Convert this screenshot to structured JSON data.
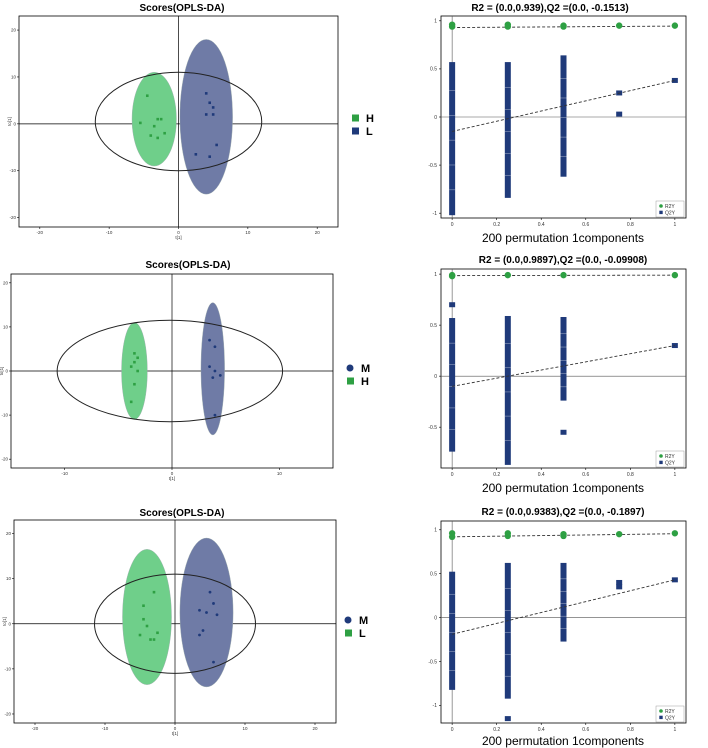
{
  "chart_data": [
    {
      "type": "scatter",
      "title": "Scores(OPLS-DA)",
      "xlabel": "t[1]",
      "ylabel": "to[1]",
      "xlim": [
        -23,
        23
      ],
      "ylim": [
        -22,
        23
      ],
      "xticks": [
        -20,
        -10,
        0,
        10,
        20
      ],
      "yticks": [
        -20,
        -10,
        0,
        10,
        20
      ],
      "ellipse": {
        "cx": 0,
        "cy": 0.5,
        "rx": 12,
        "ry": 10.5
      },
      "groups": [
        {
          "name": "H",
          "color": "#2ea043",
          "fill": "#6fcf8a",
          "marker": "square",
          "region": {
            "cx": -3.5,
            "cy": 1,
            "rx": 3.2,
            "ry": 10
          },
          "points": [
            [
              -4.5,
              6
            ],
            [
              -3,
              1
            ],
            [
              -2.5,
              1
            ],
            [
              -3.5,
              -0.5
            ],
            [
              -5.5,
              0.2
            ],
            [
              -2,
              -2
            ],
            [
              -3,
              -3
            ],
            [
              -4,
              -2.5
            ]
          ]
        },
        {
          "name": "L",
          "color": "#1f3a7a",
          "fill": "#6f7ba6",
          "marker": "square",
          "region": {
            "cx": 4,
            "cy": 1.5,
            "rx": 3.8,
            "ry": 16.5
          },
          "points": [
            [
              4,
              6.5
            ],
            [
              4.5,
              4.5
            ],
            [
              5,
              3.5
            ],
            [
              4,
              2
            ],
            [
              5,
              2
            ],
            [
              5.5,
              -4.5
            ],
            [
              2.5,
              -6.5
            ],
            [
              4.5,
              -7
            ]
          ]
        }
      ]
    },
    {
      "type": "scatter",
      "title": "R2 = (0.0,0.939),Q2 =(0.0, -0.1513)",
      "xlabel": "200 permutation 1components",
      "xlim": [
        -0.05,
        1.05
      ],
      "ylim": [
        -1.05,
        1.05
      ],
      "xticks": [
        0,
        0.2,
        0.4,
        0.6,
        0.8,
        1
      ],
      "yticks": [
        -1,
        -0.5,
        0,
        0.5,
        1
      ],
      "legend": [
        "R2Y",
        "Q2Y"
      ],
      "r2_points": [
        [
          0,
          0.94
        ],
        [
          0,
          0.96
        ],
        [
          0.25,
          0.94
        ],
        [
          0.25,
          0.96
        ],
        [
          0.5,
          0.94
        ],
        [
          0.5,
          0.95
        ],
        [
          0.75,
          0.95
        ],
        [
          1,
          0.95
        ]
      ],
      "q2_stacks": [
        [
          0,
          -1,
          0.55
        ],
        [
          0.25,
          -0.82,
          0.55
        ],
        [
          0.5,
          -0.6,
          0.62
        ]
      ],
      "q2_points": [
        [
          0.75,
          0.25
        ],
        [
          0.75,
          0.03
        ],
        [
          1,
          0.38
        ]
      ],
      "r2_line": [
        [
          0,
          0.93
        ],
        [
          1,
          0.945
        ]
      ],
      "q2_line": [
        [
          0,
          -0.15
        ],
        [
          1,
          0.38
        ]
      ]
    },
    {
      "type": "scatter",
      "title": "Scores(OPLS-DA)",
      "xlabel": "t[1]",
      "ylabel": "to[1]",
      "xlim": [
        -15,
        15
      ],
      "ylim": [
        -22,
        22
      ],
      "xticks": [
        -10,
        0,
        10
      ],
      "yticks": [
        -20,
        -10,
        0,
        10,
        20
      ],
      "ellipse": {
        "cx": -0.2,
        "cy": 0,
        "rx": 10.5,
        "ry": 11.5
      },
      "groups": [
        {
          "name": "M",
          "color": "#1f3a7a",
          "fill": "#6f7ba6",
          "marker": "circle",
          "region": {
            "cx": 3.8,
            "cy": 0.5,
            "rx": 1.1,
            "ry": 15
          },
          "points": [
            [
              3.5,
              7
            ],
            [
              4,
              5.5
            ],
            [
              3.5,
              1
            ],
            [
              4,
              0
            ],
            [
              4.5,
              -1
            ],
            [
              3.8,
              -1.5
            ],
            [
              4,
              -10
            ]
          ]
        },
        {
          "name": "H",
          "color": "#2ea043",
          "fill": "#6fcf8a",
          "marker": "square",
          "region": {
            "cx": -3.5,
            "cy": 0,
            "rx": 1.2,
            "ry": 11
          },
          "points": [
            [
              -3.5,
              4
            ],
            [
              -3.2,
              3
            ],
            [
              -3.5,
              2
            ],
            [
              -3.8,
              1
            ],
            [
              -3.2,
              0
            ],
            [
              -3.5,
              -3
            ],
            [
              -3.8,
              -7
            ]
          ]
        }
      ]
    },
    {
      "type": "scatter",
      "title": "R2 = (0.0,0.9897),Q2 =(0.0, -0.09908)",
      "xlabel": "200 permutation 1components",
      "xlim": [
        -0.05,
        1.05
      ],
      "ylim": [
        -0.9,
        1.05
      ],
      "xticks": [
        0,
        0.2,
        0.4,
        0.6,
        0.8,
        1
      ],
      "yticks": [
        -0.5,
        0,
        0.5,
        1
      ],
      "legend": [
        "R2Y",
        "Q2Y"
      ],
      "r2_points": [
        [
          0,
          0.99
        ],
        [
          0,
          0.98
        ],
        [
          0.25,
          0.99
        ],
        [
          0.5,
          0.99
        ],
        [
          1,
          0.99
        ]
      ],
      "q2_stacks": [
        [
          0,
          -0.72,
          0.55
        ],
        [
          0.25,
          -0.85,
          0.57
        ],
        [
          0.5,
          -0.22,
          0.56
        ]
      ],
      "q2_points": [
        [
          0,
          0.7
        ],
        [
          0.5,
          -0.55
        ],
        [
          1,
          0.3
        ]
      ],
      "r2_line": [
        [
          0,
          0.985
        ],
        [
          1,
          0.99
        ]
      ],
      "q2_line": [
        [
          0,
          -0.1
        ],
        [
          1,
          0.3
        ]
      ]
    },
    {
      "type": "scatter",
      "title": "Scores(OPLS-DA)",
      "xlabel": "t[1]",
      "ylabel": "to[1]",
      "xlim": [
        -23,
        23
      ],
      "ylim": [
        -22,
        23
      ],
      "xticks": [
        -20,
        -10,
        0,
        10,
        20
      ],
      "yticks": [
        -20,
        -10,
        0,
        10,
        20
      ],
      "ellipse": {
        "cx": 0,
        "cy": 0,
        "rx": 11.5,
        "ry": 11
      },
      "groups": [
        {
          "name": "M",
          "color": "#1f3a7a",
          "fill": "#6f7ba6",
          "marker": "circle",
          "region": {
            "cx": 4.5,
            "cy": 2.5,
            "rx": 3.8,
            "ry": 16.5
          },
          "points": [
            [
              5,
              7
            ],
            [
              5.5,
              4.5
            ],
            [
              3.5,
              3
            ],
            [
              4.5,
              2.5
            ],
            [
              6,
              2
            ],
            [
              4,
              -1.5
            ],
            [
              3.5,
              -2.5
            ],
            [
              5.5,
              -8.5
            ]
          ]
        },
        {
          "name": "L",
          "color": "#2ea043",
          "fill": "#6fcf8a",
          "marker": "square",
          "region": {
            "cx": -4,
            "cy": 1.5,
            "rx": 3.5,
            "ry": 15
          },
          "points": [
            [
              -3,
              7
            ],
            [
              -4.5,
              4
            ],
            [
              -4.5,
              1
            ],
            [
              -4,
              -0.5
            ],
            [
              -2.5,
              -2
            ],
            [
              -5,
              -2.5
            ],
            [
              -3.5,
              -3.5
            ],
            [
              -3,
              -3.5
            ]
          ]
        }
      ]
    },
    {
      "type": "scatter",
      "title": "R2 = (0.0,0.9383),Q2 =(0.0, -0.1897)",
      "xlabel": "200 permutation 1components",
      "xlim": [
        -0.05,
        1.05
      ],
      "ylim": [
        -1.2,
        1.1
      ],
      "xticks": [
        0,
        0.2,
        0.4,
        0.6,
        0.8,
        1
      ],
      "yticks": [
        -1,
        -0.5,
        0,
        0.5,
        1
      ],
      "legend": [
        "R2Y",
        "Q2Y"
      ],
      "r2_points": [
        [
          0,
          0.92
        ],
        [
          0,
          0.96
        ],
        [
          0.25,
          0.93
        ],
        [
          0.25,
          0.96
        ],
        [
          0.5,
          0.93
        ],
        [
          0.5,
          0.95
        ],
        [
          0.75,
          0.95
        ],
        [
          1,
          0.96
        ]
      ],
      "q2_stacks": [
        [
          0,
          -0.8,
          0.5
        ],
        [
          0.25,
          -0.9,
          0.6
        ],
        [
          0.5,
          -0.25,
          0.6
        ]
      ],
      "q2_points": [
        [
          0.25,
          -1.15
        ],
        [
          0.75,
          0.4
        ],
        [
          0.75,
          0.35
        ],
        [
          1,
          0.43
        ]
      ],
      "r2_line": [
        [
          0,
          0.92
        ],
        [
          1,
          0.955
        ]
      ],
      "q2_line": [
        [
          0,
          -0.19
        ],
        [
          1,
          0.43
        ]
      ]
    }
  ]
}
